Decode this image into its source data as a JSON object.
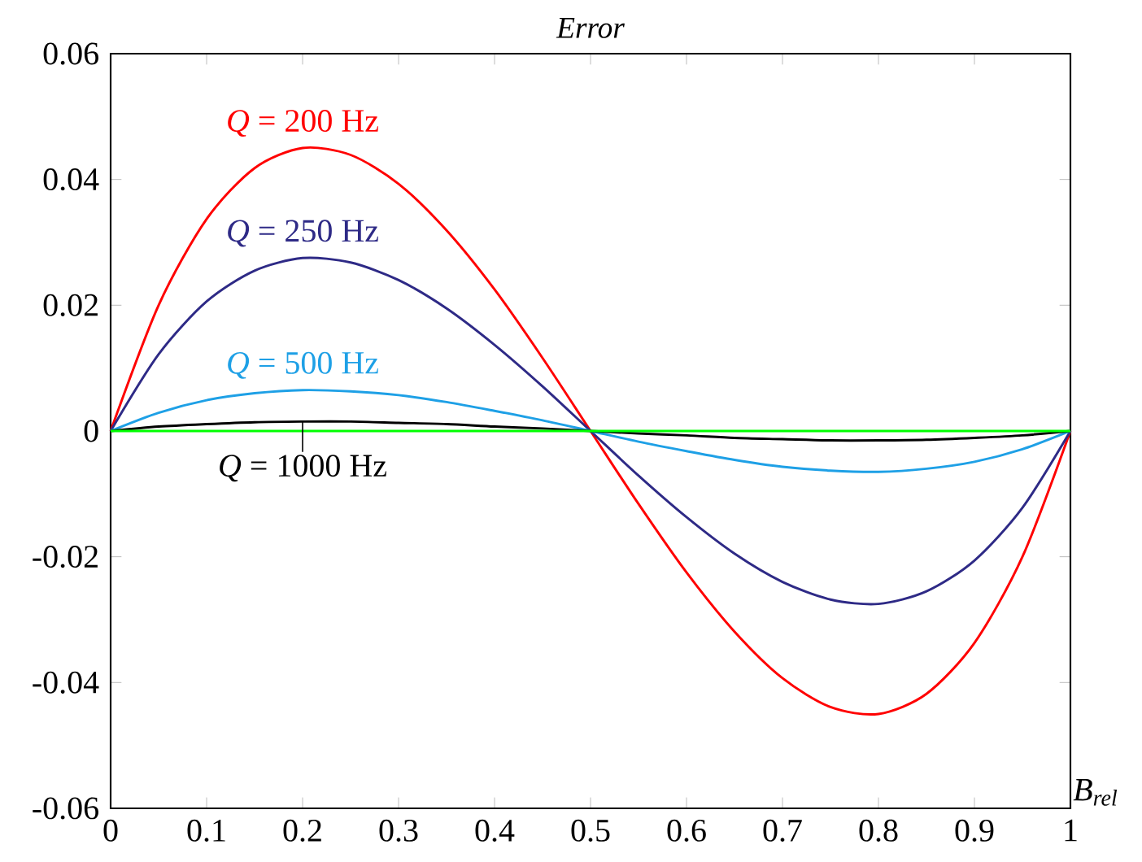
{
  "chart_data": {
    "type": "line",
    "title": "Error",
    "xlabel": "B$_{rel}$",
    "x": [
      0,
      0.05,
      0.1,
      0.15,
      0.2,
      0.25,
      0.3,
      0.35,
      0.4,
      0.45,
      0.5,
      0.55,
      0.6,
      0.65,
      0.7,
      0.75,
      0.8,
      0.85,
      0.9,
      0.95,
      1
    ],
    "series": [
      {
        "name": "*Q* = 200 Hz",
        "color": "#ff0000",
        "values": [
          0,
          0.02,
          0.0337,
          0.0418,
          0.045,
          0.0439,
          0.0393,
          0.0319,
          0.0225,
          0.0116,
          0,
          -0.0116,
          -0.0225,
          -0.0319,
          -0.0393,
          -0.0439,
          -0.045,
          -0.0418,
          -0.0337,
          -0.02,
          0
        ]
      },
      {
        "name": "*Q* = 250 Hz",
        "color": "#2e2a86",
        "values": [
          0,
          0.0122,
          0.0206,
          0.0255,
          0.0275,
          0.0268,
          0.024,
          0.0195,
          0.0137,
          0.0071,
          0,
          -0.0071,
          -0.0137,
          -0.0195,
          -0.024,
          -0.0268,
          -0.0275,
          -0.0255,
          -0.0206,
          -0.0122,
          0
        ]
      },
      {
        "name": "*Q* = 500 Hz",
        "color": "#1ea0e6",
        "values": [
          0,
          0.0029,
          0.0049,
          0.006,
          0.0065,
          0.0063,
          0.0057,
          0.0046,
          0.0032,
          0.0017,
          0,
          -0.0017,
          -0.0032,
          -0.0046,
          -0.0057,
          -0.0063,
          -0.0065,
          -0.006,
          -0.0049,
          -0.0029,
          0
        ]
      },
      {
        "name": "*Q* = 1000 Hz",
        "color": "#000000",
        "values": [
          0,
          0.0007,
          0.0011,
          0.0014,
          0.0015,
          0.0015,
          0.0013,
          0.0011,
          0.0007,
          0.0004,
          0,
          -0.0004,
          -0.0007,
          -0.0011,
          -0.0013,
          -0.0015,
          -0.0015,
          -0.0014,
          -0.0011,
          -0.0007,
          0
        ]
      },
      {
        "color": "#00ff00",
        "values": [
          0,
          0,
          0,
          0,
          0,
          0,
          0,
          0,
          0,
          0,
          0,
          0,
          0,
          0,
          0,
          0,
          0,
          0,
          0,
          0,
          0
        ]
      }
    ],
    "xlim": [
      0,
      1
    ],
    "ylim": [
      -0.06,
      0.06
    ],
    "xticks": [
      0,
      0.1,
      0.2,
      0.3,
      0.4,
      0.5,
      0.6,
      0.7,
      0.8,
      0.9,
      1
    ],
    "yticks": [
      -0.06,
      -0.04,
      -0.02,
      0,
      0.02,
      0.04,
      0.06
    ],
    "grid": false
  }
}
